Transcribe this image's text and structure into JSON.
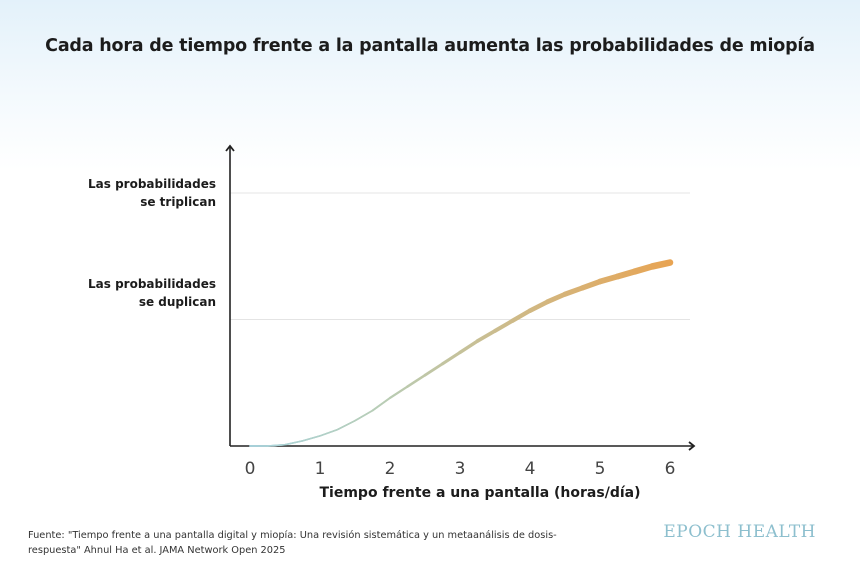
{
  "chart_data": {
    "type": "line",
    "title": "Cada hora de tiempo frente a la pantalla aumenta las probabilidades de miopía",
    "xlabel": "Tiempo frente a una pantalla (horas/día)",
    "ylabel": "",
    "x_ticks": [
      "0",
      "1",
      "2",
      "3",
      "4",
      "5",
      "6"
    ],
    "xlim": [
      0,
      6
    ],
    "ylim": [
      1,
      3.5
    ],
    "y_reference_lines": [
      {
        "value": 3,
        "label_line1": "Las probabilidades",
        "label_line2": "se triplican"
      },
      {
        "value": 2,
        "label_line1": "Las probabilidades",
        "label_line2": "se duplican"
      }
    ],
    "series": [
      {
        "x": [
          0,
          0.25,
          0.5,
          0.75,
          1,
          1.25,
          1.5,
          1.75,
          2,
          2.25,
          2.5,
          2.75,
          3,
          3.25,
          3.5,
          3.75,
          4,
          4.25,
          4.5,
          4.75,
          5,
          5.25,
          5.5,
          5.75,
          6
        ],
        "y": [
          1.0,
          1.0,
          1.01,
          1.04,
          1.08,
          1.13,
          1.2,
          1.28,
          1.38,
          1.47,
          1.56,
          1.65,
          1.74,
          1.83,
          1.91,
          1.99,
          2.07,
          2.14,
          2.2,
          2.25,
          2.3,
          2.34,
          2.38,
          2.42,
          2.45
        ]
      }
    ],
    "colors": {
      "start": "#a8d4de",
      "end": "#eaa24e"
    },
    "grid": false
  },
  "source": {
    "line1": "Fuente: \"Tiempo frente a una pantalla digital y miopía: Una revisión sistemática y un metaanálisis de dosis-",
    "line2": "respuesta\" Ahnul Ha et al. JAMA Network Open 2025"
  },
  "brand": "EPOCH HEALTH"
}
